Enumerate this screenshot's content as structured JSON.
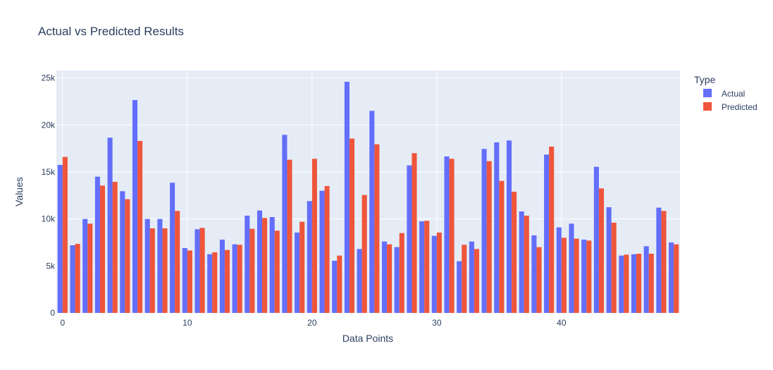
{
  "chart_data": {
    "type": "bar",
    "title": "Actual vs Predicted Results",
    "xlabel": "Data Points",
    "ylabel": "Values",
    "legend_title": "Type",
    "legend_position": "top-right",
    "grid": true,
    "background_color": "#e5ecf6",
    "xlim": [
      -0.5,
      49.5
    ],
    "ylim": [
      0,
      25800
    ],
    "x_ticks": [
      0,
      10,
      20,
      30,
      40
    ],
    "y_ticks": [
      {
        "value": 0,
        "label": "0"
      },
      {
        "value": 5000,
        "label": "5k"
      },
      {
        "value": 10000,
        "label": "10k"
      },
      {
        "value": 15000,
        "label": "15k"
      },
      {
        "value": 20000,
        "label": "20k"
      },
      {
        "value": 25000,
        "label": "25k"
      }
    ],
    "x": [
      0,
      1,
      2,
      3,
      4,
      5,
      6,
      7,
      8,
      9,
      10,
      11,
      12,
      13,
      14,
      15,
      16,
      17,
      18,
      19,
      20,
      21,
      22,
      23,
      24,
      25,
      26,
      27,
      28,
      29,
      30,
      31,
      32,
      33,
      34,
      35,
      36,
      37,
      38,
      39,
      40,
      41,
      42,
      43,
      44,
      45,
      46,
      47,
      48,
      49
    ],
    "series": [
      {
        "name": "Actual",
        "color": "#636efa",
        "values": [
          15750,
          7200,
          10000,
          14500,
          18650,
          12950,
          22650,
          10000,
          10000,
          13850,
          6900,
          8900,
          6250,
          7800,
          7300,
          10350,
          10900,
          10200,
          18950,
          8550,
          11900,
          13000,
          5550,
          24600,
          6800,
          21500,
          7600,
          7000,
          15700,
          9750,
          8200,
          16650,
          5500,
          7600,
          17450,
          18150,
          18350,
          10800,
          8250,
          16850,
          9100,
          9500,
          7800,
          15550,
          11250,
          6100,
          6250,
          7100,
          11200,
          7500
        ]
      },
      {
        "name": "Predicted",
        "color": "#ef553b",
        "values": [
          16600,
          7350,
          9500,
          13550,
          13950,
          12100,
          18300,
          9000,
          9000,
          10850,
          6650,
          9050,
          6450,
          6700,
          7250,
          8950,
          10100,
          8750,
          16300,
          9700,
          16400,
          13500,
          6100,
          18550,
          12550,
          17950,
          7300,
          8500,
          17000,
          9800,
          8550,
          16400,
          7250,
          6800,
          16150,
          14050,
          12900,
          10350,
          7000,
          17700,
          8000,
          7900,
          7700,
          13250,
          9600,
          6200,
          6300,
          6300,
          10850,
          7300
        ]
      }
    ]
  }
}
